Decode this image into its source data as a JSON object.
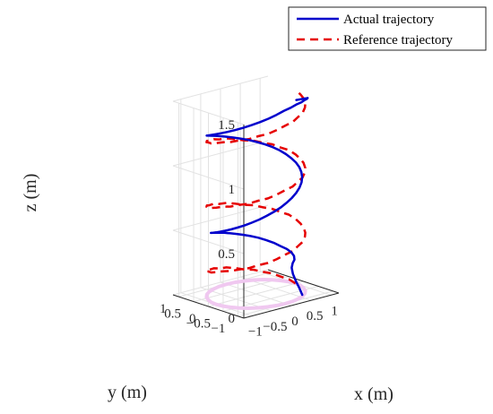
{
  "chart_data": {
    "type": "line",
    "projection": "3d",
    "grid": true,
    "legend_position": "top-right",
    "xlabel": "x (m)",
    "ylabel": "y (m)",
    "zlabel": "z (m)",
    "xlim": [
      -1.2,
      1.2
    ],
    "ylim": [
      -1.2,
      1.2
    ],
    "zlim": [
      0,
      1.5
    ],
    "xticks": [
      "−1",
      "−0.5",
      "0",
      "0.5",
      "1"
    ],
    "yticks": [
      "−1",
      "−0.5",
      "0",
      "0.5",
      "1"
    ],
    "zticks": [
      "0",
      "0.5",
      "1",
      "1.5"
    ],
    "series": [
      {
        "name": "Actual trajectory",
        "color": "#0000cc",
        "style": "solid",
        "x": [
          0.5,
          0.52,
          0.55,
          0.6,
          0.68,
          0.78,
          0.9,
          1.0,
          1.06,
          1.08,
          1.06,
          1.0,
          0.9,
          0.78,
          0.63,
          0.47,
          0.3,
          0.13,
          -0.04,
          -0.21,
          -0.37,
          -0.52,
          -0.66,
          -0.78,
          -0.88,
          -0.96,
          -1.01,
          -1.04,
          -1.04,
          -1.01,
          -0.95,
          -0.87,
          -0.76,
          -0.63,
          -0.48,
          -0.32,
          -0.15,
          0.02,
          0.19,
          0.36,
          0.52,
          0.66,
          0.78,
          0.88,
          0.95,
          0.99,
          1.0,
          0.99,
          0.95,
          0.88,
          0.78,
          0.66,
          0.52,
          0.36,
          0.19,
          0.02,
          -0.15,
          -0.32,
          -0.48,
          -0.63,
          -0.76,
          -0.87,
          -0.95,
          -1.0,
          -1.02,
          -1.01,
          -0.97,
          -0.9,
          -0.8,
          -0.68,
          -0.54,
          -0.38,
          -0.22,
          -0.05,
          0.12,
          0.29,
          0.45,
          0.59,
          0.72,
          0.83,
          0.92,
          0.98,
          1.01,
          1.02
        ],
        "y": [
          -0.9,
          -0.78,
          -0.62,
          -0.45,
          -0.3,
          -0.2,
          -0.1,
          0.05,
          0.22,
          0.4,
          0.58,
          0.74,
          0.86,
          0.96,
          1.03,
          1.07,
          1.08,
          1.06,
          1.02,
          0.95,
          0.86,
          0.75,
          0.62,
          0.48,
          0.32,
          0.16,
          -0.01,
          -0.18,
          -0.35,
          -0.51,
          -0.65,
          -0.78,
          -0.88,
          -0.96,
          -1.01,
          -1.04,
          -1.04,
          -1.01,
          -0.96,
          -0.88,
          -0.78,
          -0.66,
          -0.52,
          -0.36,
          -0.2,
          -0.03,
          0.14,
          0.31,
          0.47,
          0.61,
          0.74,
          0.85,
          0.93,
          0.99,
          1.02,
          1.02,
          0.99,
          0.94,
          0.86,
          0.76,
          0.64,
          0.5,
          0.34,
          0.17,
          0.0,
          -0.17,
          -0.34,
          -0.5,
          -0.64,
          -0.76,
          -0.86,
          -0.94,
          -0.99,
          -1.02,
          -1.02,
          -0.99,
          -0.94,
          -0.86,
          -0.76,
          -0.64,
          -0.5,
          -0.34,
          -0.17,
          0.0
        ],
        "z": [
          0.02,
          0.06,
          0.1,
          0.14,
          0.17,
          0.19,
          0.2,
          0.21,
          0.22,
          0.23,
          0.24,
          0.26,
          0.28,
          0.3,
          0.32,
          0.34,
          0.36,
          0.38,
          0.4,
          0.42,
          0.44,
          0.46,
          0.48,
          0.5,
          0.52,
          0.54,
          0.56,
          0.58,
          0.6,
          0.62,
          0.64,
          0.66,
          0.68,
          0.7,
          0.72,
          0.74,
          0.76,
          0.78,
          0.8,
          0.82,
          0.84,
          0.86,
          0.88,
          0.9,
          0.92,
          0.94,
          0.96,
          0.98,
          1.0,
          1.02,
          1.04,
          1.06,
          1.08,
          1.1,
          1.12,
          1.14,
          1.16,
          1.18,
          1.2,
          1.22,
          1.24,
          1.26,
          1.28,
          1.3,
          1.32,
          1.34,
          1.36,
          1.38,
          1.4,
          1.42,
          1.44,
          1.46,
          1.48,
          1.5,
          1.51,
          1.52,
          1.52,
          1.52,
          1.51,
          1.5,
          1.48,
          1.46,
          1.44,
          1.42
        ]
      },
      {
        "name": "Reference trajectory",
        "color": "#e60000",
        "style": "dashed",
        "x": [
          1.0,
          0.98,
          0.92,
          0.83,
          0.71,
          0.56,
          0.38,
          0.2,
          0.0,
          -0.2,
          -0.38,
          -0.56,
          -0.71,
          -0.83,
          -0.92,
          -0.98,
          -1.0,
          -0.98,
          -0.92,
          -0.83,
          -0.71,
          -0.56,
          -0.38,
          -0.2,
          0.0,
          0.2,
          0.38,
          0.56,
          0.71,
          0.83,
          0.92,
          0.98,
          1.0,
          0.98,
          0.92,
          0.83,
          0.71,
          0.56,
          0.38,
          0.2,
          0.0,
          -0.2,
          -0.38,
          -0.56,
          -0.71,
          -0.83,
          -0.92,
          -0.98,
          -1.0,
          -0.98,
          -0.92,
          -0.83,
          -0.71,
          -0.56,
          -0.38,
          -0.2,
          0.0,
          0.2,
          0.38,
          0.56,
          0.71,
          0.83,
          0.92,
          0.98,
          1.0,
          0.98,
          0.92,
          0.83,
          0.71,
          0.56,
          0.38,
          0.2,
          0.0,
          -0.2,
          -0.38,
          -0.56,
          -0.71,
          -0.83,
          -0.92,
          -0.98,
          -1.0,
          -0.98,
          -0.92,
          -0.83,
          -0.71,
          -0.56,
          -0.38,
          -0.2,
          0.0,
          0.2,
          0.38,
          0.56,
          0.71,
          0.83,
          0.92,
          0.98,
          1.0
        ],
        "y": [
          0.0,
          0.2,
          0.38,
          0.56,
          0.71,
          0.83,
          0.92,
          0.98,
          1.0,
          0.98,
          0.92,
          0.83,
          0.71,
          0.56,
          0.38,
          0.2,
          0.0,
          -0.2,
          -0.38,
          -0.56,
          -0.71,
          -0.83,
          -0.92,
          -0.98,
          -1.0,
          -0.98,
          -0.92,
          -0.83,
          -0.71,
          -0.56,
          -0.38,
          -0.2,
          0.0,
          0.2,
          0.38,
          0.56,
          0.71,
          0.83,
          0.92,
          0.98,
          1.0,
          0.98,
          0.92,
          0.83,
          0.71,
          0.56,
          0.38,
          0.2,
          0.0,
          -0.2,
          -0.38,
          -0.56,
          -0.71,
          -0.83,
          -0.92,
          -0.98,
          -1.0,
          -0.98,
          -0.92,
          -0.83,
          -0.71,
          -0.56,
          -0.38,
          -0.2,
          0.0,
          0.2,
          0.38,
          0.56,
          0.71,
          0.83,
          0.92,
          0.98,
          1.0,
          0.98,
          0.92,
          0.83,
          0.71,
          0.56,
          0.38,
          0.2,
          0.0,
          -0.2,
          -0.38,
          -0.56,
          -0.71,
          -0.83,
          -0.92,
          -0.98,
          -1.0,
          -0.98,
          -0.92,
          -0.83,
          -0.71,
          -0.56,
          -0.38,
          -0.2,
          0.0
        ],
        "z": [
          0.0,
          0.02,
          0.03,
          0.05,
          0.06,
          0.08,
          0.09,
          0.11,
          0.13,
          0.14,
          0.16,
          0.17,
          0.19,
          0.2,
          0.22,
          0.23,
          0.25,
          0.27,
          0.28,
          0.3,
          0.31,
          0.33,
          0.34,
          0.36,
          0.38,
          0.39,
          0.41,
          0.42,
          0.44,
          0.45,
          0.47,
          0.48,
          0.5,
          0.52,
          0.53,
          0.55,
          0.56,
          0.58,
          0.59,
          0.61,
          0.63,
          0.64,
          0.66,
          0.67,
          0.69,
          0.7,
          0.72,
          0.73,
          0.75,
          0.77,
          0.78,
          0.8,
          0.81,
          0.83,
          0.84,
          0.86,
          0.88,
          0.89,
          0.91,
          0.92,
          0.94,
          0.95,
          0.97,
          0.98,
          1.0,
          1.02,
          1.03,
          1.05,
          1.06,
          1.08,
          1.09,
          1.11,
          1.13,
          1.14,
          1.16,
          1.17,
          1.19,
          1.2,
          1.22,
          1.23,
          1.25,
          1.27,
          1.28,
          1.3,
          1.31,
          1.33,
          1.34,
          1.36,
          1.38,
          1.39,
          1.41,
          1.42,
          1.44,
          1.45,
          1.47,
          1.48,
          1.5
        ]
      }
    ],
    "projections": [
      {
        "color": "#7a4a1a",
        "style": "dashed",
        "z": 0,
        "x_source": "Reference trajectory"
      },
      {
        "color": "#f0c8f0",
        "style": "solid",
        "z": 0,
        "x_source": "Reference trajectory"
      }
    ]
  }
}
